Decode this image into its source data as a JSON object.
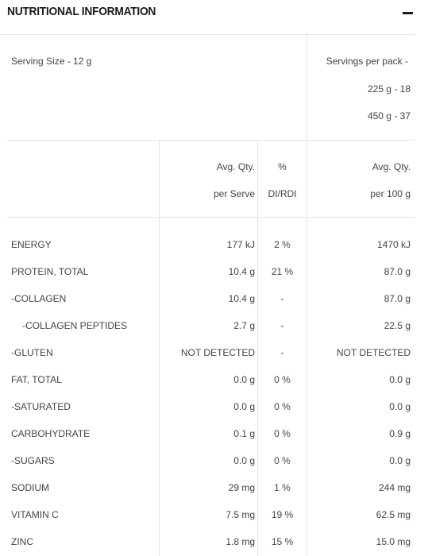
{
  "title": "NUTRITIONAL INFORMATION",
  "icons": {
    "collapse": "minus-icon"
  },
  "serving": {
    "size": "Serving Size - 12 g",
    "per_pack_label": "Servings per pack -",
    "pack_225": "225 g - 18",
    "pack_450": "450 g - 37"
  },
  "columns": {
    "avg_qty": "Avg. Qty.",
    "per_serve": "per Serve",
    "percent": "%",
    "di_rdi": "DI/RDI",
    "avg_qty_100": "Avg. Qty.",
    "per_100g": "per 100 g"
  },
  "rows": [
    {
      "name": "ENERGY",
      "serve": "177 kJ",
      "pct": "2 %",
      "per100": "1470 kJ",
      "indent": false
    },
    {
      "name": "PROTEIN, TOTAL",
      "serve": "10.4 g",
      "pct": "21 %",
      "per100": "87.0 g",
      "indent": false
    },
    {
      "name": "-COLLAGEN",
      "serve": "10.4 g",
      "pct": "-",
      "per100": "87.0 g",
      "indent": false
    },
    {
      "name": "-COLLAGEN PEPTIDES",
      "serve": "2.7 g",
      "pct": "-",
      "per100": "22.5 g",
      "indent": true
    },
    {
      "name": "-GLUTEN",
      "serve": "NOT DETECTED",
      "pct": "-",
      "per100": "NOT DETECTED",
      "indent": false
    },
    {
      "name": "FAT, TOTAL",
      "serve": "0.0 g",
      "pct": "0 %",
      "per100": "0.0 g",
      "indent": false
    },
    {
      "name": "-SATURATED",
      "serve": "0.0 g",
      "pct": "0 %",
      "per100": "0.0 g",
      "indent": false
    },
    {
      "name": "CARBOHYDRATE",
      "serve": "0.1 g",
      "pct": "0 %",
      "per100": "0.9 g",
      "indent": false
    },
    {
      "name": "-SUGARS",
      "serve": "0.0 g",
      "pct": "0 %",
      "per100": "0.0 g",
      "indent": false
    },
    {
      "name": "SODIUM",
      "serve": "29 mg",
      "pct": "1 %",
      "per100": "244 mg",
      "indent": false
    },
    {
      "name": "VITAMIN C",
      "serve": "7.5 mg",
      "pct": "19 %",
      "per100": "62.5 mg",
      "indent": false
    },
    {
      "name": "ZINC",
      "serve": "1.8 mg",
      "pct": "15 %",
      "per100": "15.0 mg",
      "indent": false
    }
  ]
}
